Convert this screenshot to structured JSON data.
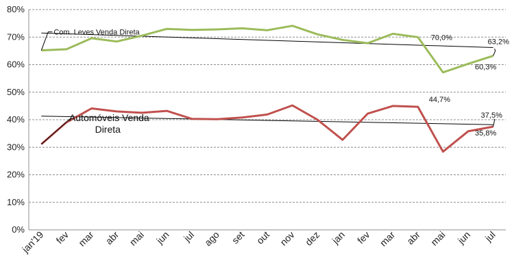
{
  "chart_data": {
    "type": "line",
    "categories": [
      "jan'19",
      "fev",
      "mar",
      "abr",
      "mai",
      "jun",
      "jul",
      "ago",
      "set",
      "out",
      "nov",
      "dez",
      "jan",
      "fev",
      "mar",
      "abr",
      "mai",
      "jun",
      "jul"
    ],
    "y_ticks": [
      "0%",
      "10%",
      "20%",
      "30%",
      "40%",
      "50%",
      "60%",
      "70%",
      "80%"
    ],
    "ylim": [
      0,
      80
    ],
    "grid": true,
    "series": [
      {
        "name": "Com. Leves Venda Direta",
        "color": "#9bbb59",
        "values": [
          65.2,
          65.6,
          69.6,
          68.4,
          70.5,
          73.0,
          72.6,
          72.8,
          73.2,
          72.5,
          74.1,
          71.0,
          69.0,
          67.8,
          71.2,
          70.0,
          57.2,
          60.3,
          63.2
        ],
        "trend": [
          71.5,
          66.2
        ],
        "label_lines": [
          "Com. Leves Venda Direta"
        ]
      },
      {
        "name": "Automóveis Venda Direta",
        "color": "#c0504d",
        "values": [
          31.1,
          39.0,
          44.1,
          43.0,
          42.5,
          43.2,
          40.3,
          40.2,
          40.8,
          41.9,
          45.2,
          40.0,
          32.7,
          42.2,
          45.0,
          44.7,
          28.4,
          35.8,
          37.5
        ],
        "trend": [
          41.3,
          38.2
        ],
        "label_lines": [
          "Automóveis Venda",
          "Direta"
        ]
      }
    ],
    "annotations": [
      "70,0%",
      "63,2%",
      "60,3%",
      "44,7%",
      "37,5%",
      "35,8%"
    ]
  }
}
